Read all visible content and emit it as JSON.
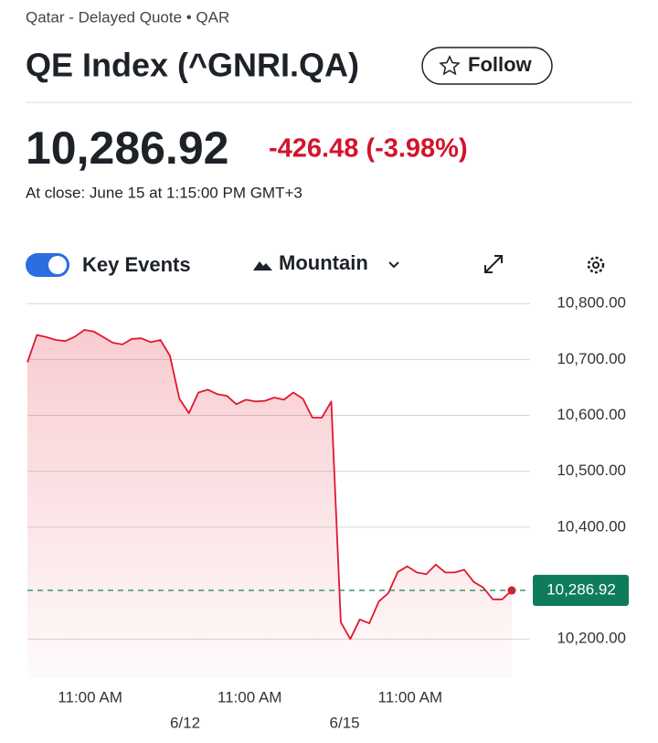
{
  "header": {
    "subtitle": "Qatar - Delayed Quote • QAR",
    "title": "QE Index (^GNRI.QA)",
    "follow": "Follow"
  },
  "quote": {
    "price": "10,286.92",
    "change": "-426.48 (-3.98%)",
    "close_time": "At close: June 15 at 1:15:00 PM GMT+3"
  },
  "toolbar": {
    "key_events": "Key Events",
    "chart_style": "Mountain"
  },
  "chart_data": {
    "type": "area",
    "color": "#e0182d",
    "values": [
      10695,
      10744,
      10740,
      10735,
      10733,
      10741,
      10753,
      10750,
      10740,
      10730,
      10727,
      10737,
      10738,
      10731,
      10735,
      10707,
      10630,
      10604,
      10641,
      10646,
      10638,
      10635,
      10620,
      10628,
      10625,
      10626,
      10632,
      10628,
      10641,
      10630,
      10596,
      10596,
      10625,
      10230,
      10200,
      10235,
      10228,
      10267,
      10282,
      10320,
      10330,
      10319,
      10316,
      10333,
      10319,
      10319,
      10324,
      10302,
      10292,
      10271,
      10271,
      10286.92
    ],
    "ylim": [
      10130,
      10820
    ],
    "yticks": [
      {
        "value": 10200,
        "label": "10,200.00"
      },
      {
        "value": 10400,
        "label": "10,400.00"
      },
      {
        "value": 10500,
        "label": "10,500.00"
      },
      {
        "value": 10600,
        "label": "10,600.00"
      },
      {
        "value": 10700,
        "label": "10,700.00"
      },
      {
        "value": 10800,
        "label": "10,800.00"
      }
    ],
    "xlim": [
      0,
      51
    ],
    "xticks": [
      {
        "value": 6.6,
        "label": "11:00 AM"
      },
      {
        "value": 23.4,
        "label": "11:00 AM"
      },
      {
        "value": 40.3,
        "label": "11:00 AM"
      }
    ],
    "date_ticks": [
      {
        "value": 16.6,
        "label": "6/12"
      },
      {
        "value": 33.4,
        "label": "6/15"
      }
    ],
    "last_price": {
      "value": 10286.92,
      "label": "10,286.92"
    },
    "grid": true
  }
}
